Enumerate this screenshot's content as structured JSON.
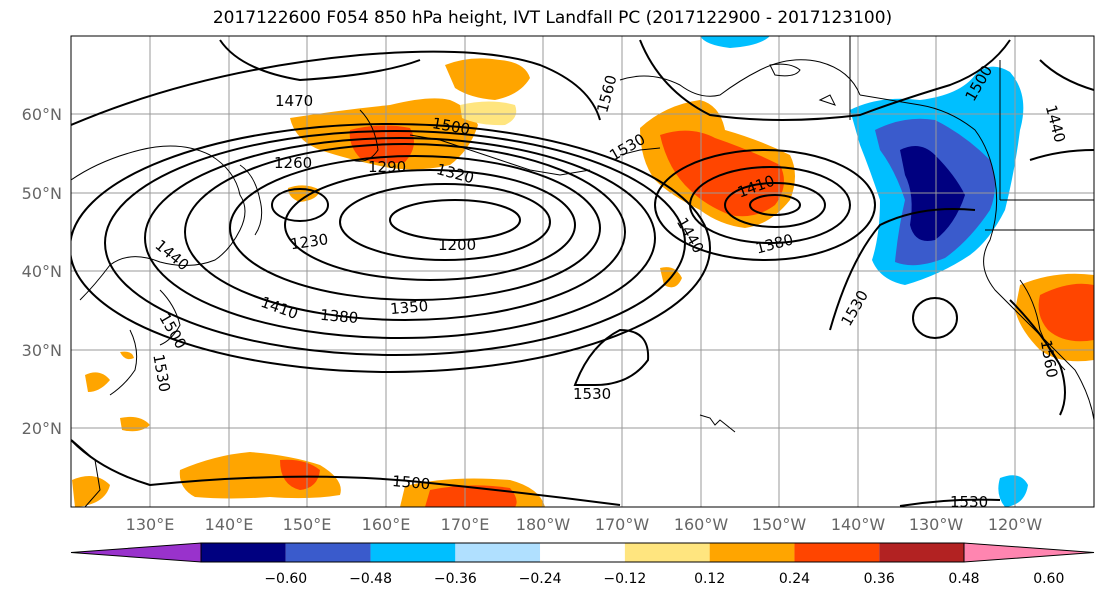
{
  "title": "2017122600 F054 850 hPa height, IVT Landfall PC (2017122900 - 2017123100)",
  "lat_labels": [
    "60°N",
    "50°N",
    "40°N",
    "30°N",
    "20°N"
  ],
  "lon_labels": [
    "130°E",
    "140°E",
    "150°E",
    "160°E",
    "170°E",
    "180°W",
    "170°W",
    "160°W",
    "150°W",
    "140°W",
    "130°W",
    "120°W"
  ],
  "contour_labels": [
    "1470",
    "1500",
    "1560",
    "1530",
    "1260",
    "1290",
    "1320",
    "1410",
    "1230",
    "1200",
    "1440",
    "1380",
    "1500",
    "1440",
    "1440",
    "1410",
    "1380",
    "1350",
    "1500",
    "1530",
    "1530",
    "1530",
    "1560",
    "1500",
    "1530"
  ],
  "colorbar": {
    "ticks": [
      "−0.60",
      "−0.48",
      "−0.36",
      "−0.24",
      "−0.12",
      "0.12",
      "0.24",
      "0.36",
      "0.48",
      "0.60"
    ],
    "colors": [
      "#9932CC",
      "#000080",
      "#3A5BCC",
      "#00BFFF",
      "#B0E0FF",
      "#FFFFFF",
      "#FFE57F",
      "#FFA500",
      "#FF4500",
      "#B22222",
      "#FF85B0"
    ]
  },
  "colors": {
    "contour": "#000000",
    "coast": "#000000",
    "grid": "#999999",
    "axis_label": "#666666"
  }
}
